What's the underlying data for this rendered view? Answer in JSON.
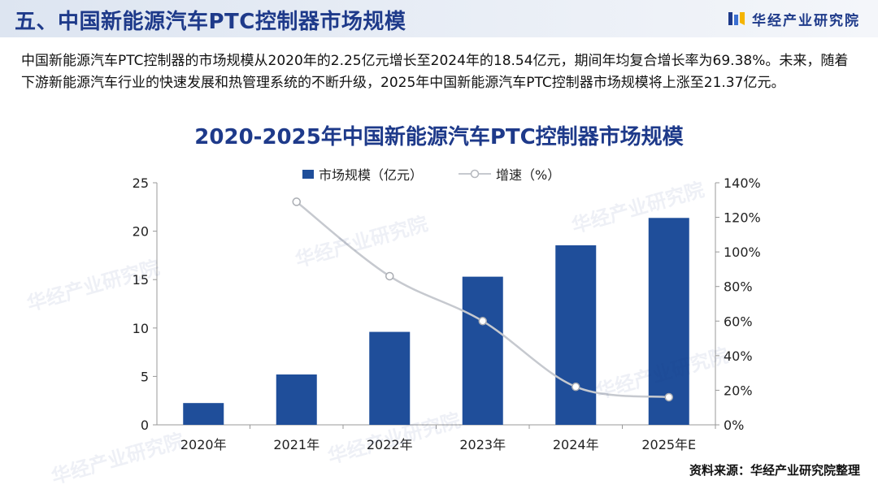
{
  "header": {
    "title": "五、中国新能源汽车PTC控制器市场规模",
    "brand": "华经产业研究院"
  },
  "intro": {
    "paragraph": "中国新能源汽车PTC控制器的市场规模从2020年的2.25亿元增长至2024年的18.54亿元，期间年均复合增长率为69.38%。未来，随着下游新能源汽车行业的快速发展和热管理系统的不断升级，2025年中国新能源汽车PTC控制器市场规模将上涨至21.37亿元。"
  },
  "watermark": "华经产业研究院",
  "source": "资料来源：华经产业研究院整理",
  "colors": {
    "bar": "#1f4e9a",
    "line": "#c6c9cf",
    "title": "#1e3a8a"
  },
  "chart_data": {
    "type": "bar",
    "title": "2020-2025年中国新能源汽车PTC控制器市场规模",
    "categories": [
      "2020年",
      "2021年",
      "2022年",
      "2023年",
      "2024年",
      "2025年E"
    ],
    "series": [
      {
        "name": "市场规模（亿元）",
        "type": "bar",
        "axis": "left",
        "values": [
          2.25,
          5.2,
          9.6,
          15.3,
          18.54,
          21.37
        ]
      },
      {
        "name": "增速（%）",
        "type": "line",
        "axis": "right",
        "values": [
          null,
          129,
          86,
          60,
          22,
          16
        ]
      }
    ],
    "y_left": {
      "min": 0,
      "max": 25,
      "ticks": [
        0,
        5,
        10,
        15,
        20,
        25
      ],
      "tick_labels": [
        "0",
        "5",
        "10",
        "15",
        "20",
        "25"
      ]
    },
    "y_right": {
      "min": 0,
      "max": 140,
      "ticks": [
        0,
        20,
        40,
        60,
        80,
        100,
        120,
        140
      ],
      "tick_labels": [
        "0%",
        "20%",
        "40%",
        "60%",
        "80%",
        "100%",
        "120%",
        "140%"
      ]
    },
    "legend_position": "top-center",
    "grid": false
  }
}
